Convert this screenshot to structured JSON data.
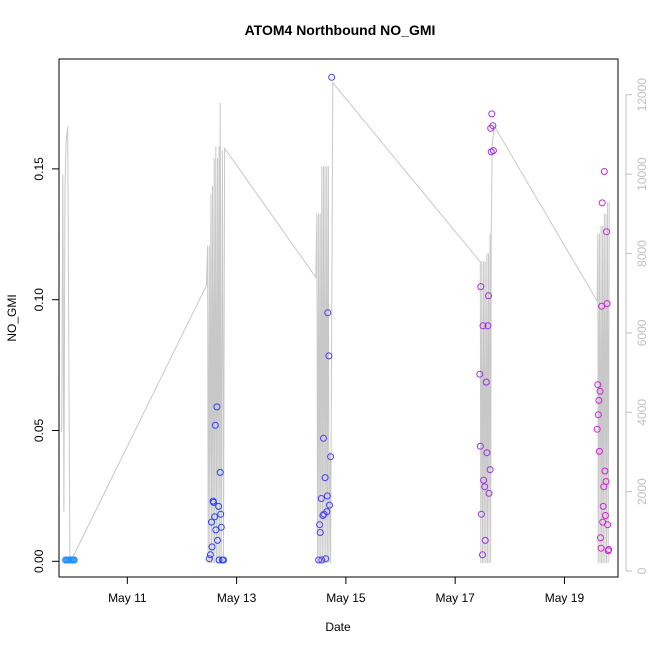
{
  "chart_data": {
    "type": "scatter",
    "title": "ATOM4 Northbound NO_GMI",
    "xlabel": "Date",
    "ylabel": "NO_GMI",
    "x_ticks": [
      "May 11",
      "May 13",
      "May 15",
      "May 17",
      "May 19"
    ],
    "x_tick_days": [
      11,
      13,
      15,
      17,
      19
    ],
    "xlim": [
      9.75,
      19.98
    ],
    "ylim": [
      -0.006,
      0.192
    ],
    "y_ticks": [
      0.0,
      0.05,
      0.1,
      0.15
    ],
    "y_tick_labels": [
      "0.00",
      "0.05",
      "0.10",
      "0.15"
    ],
    "y2lim": [
      -150,
      12900
    ],
    "y2_ticks": [
      0,
      2000,
      4000,
      6000,
      8000,
      10000,
      12000
    ],
    "y2_tick_labels": [
      "0",
      "2000",
      "4000",
      "6000",
      "8000",
      "10000",
      "12000"
    ],
    "grid": false,
    "colors": {
      "axis": "#000000",
      "altitude_line": "#c8c8c8",
      "right_axis": "#c0c0c0"
    },
    "points": [
      {
        "x": 9.87,
        "y": 0.0005,
        "color": "#1e90ff"
      },
      {
        "x": 9.89,
        "y": 0.0005,
        "color": "#1e90ff"
      },
      {
        "x": 9.91,
        "y": 0.0005,
        "color": "#1e90ff"
      },
      {
        "x": 9.93,
        "y": 0.0005,
        "color": "#1e90ff"
      },
      {
        "x": 9.95,
        "y": 0.0005,
        "color": "#1e90ff"
      },
      {
        "x": 9.97,
        "y": 0.0005,
        "color": "#1e90ff"
      },
      {
        "x": 9.99,
        "y": 0.0005,
        "color": "#1e90ff"
      },
      {
        "x": 10.01,
        "y": 0.0005,
        "color": "#1e90ff"
      },
      {
        "x": 10.03,
        "y": 0.0005,
        "color": "#1e90ff"
      },
      {
        "x": 12.5,
        "y": 0.001,
        "color": "#2a40ff"
      },
      {
        "x": 12.52,
        "y": 0.0025,
        "color": "#2a40ff"
      },
      {
        "x": 12.54,
        "y": 0.015,
        "color": "#2a40ff"
      },
      {
        "x": 12.55,
        "y": 0.0055,
        "color": "#2a40ff"
      },
      {
        "x": 12.57,
        "y": 0.023,
        "color": "#2a40ff"
      },
      {
        "x": 12.58,
        "y": 0.0225,
        "color": "#2a40ff"
      },
      {
        "x": 12.6,
        "y": 0.017,
        "color": "#2a40ff"
      },
      {
        "x": 12.61,
        "y": 0.052,
        "color": "#2a40ff"
      },
      {
        "x": 12.62,
        "y": 0.012,
        "color": "#2a40ff"
      },
      {
        "x": 12.64,
        "y": 0.059,
        "color": "#2a40ff"
      },
      {
        "x": 12.65,
        "y": 0.008,
        "color": "#2a40ff"
      },
      {
        "x": 12.67,
        "y": 0.021,
        "color": "#2a40ff"
      },
      {
        "x": 12.68,
        "y": 0.0005,
        "color": "#2a40ff"
      },
      {
        "x": 12.7,
        "y": 0.034,
        "color": "#2a40ff"
      },
      {
        "x": 12.71,
        "y": 0.018,
        "color": "#2a40ff"
      },
      {
        "x": 12.72,
        "y": 0.013,
        "color": "#2a40ff"
      },
      {
        "x": 12.74,
        "y": 0.0005,
        "color": "#2a40ff"
      },
      {
        "x": 12.76,
        "y": 0.0005,
        "color": "#2a40ff"
      },
      {
        "x": 14.5,
        "y": 0.0005,
        "color": "#4a3cff"
      },
      {
        "x": 14.52,
        "y": 0.014,
        "color": "#4a3cff"
      },
      {
        "x": 14.53,
        "y": 0.011,
        "color": "#4a3cff"
      },
      {
        "x": 14.55,
        "y": 0.024,
        "color": "#4a3cff"
      },
      {
        "x": 14.56,
        "y": 0.0005,
        "color": "#4a3cff"
      },
      {
        "x": 14.58,
        "y": 0.0175,
        "color": "#4a3cff"
      },
      {
        "x": 14.59,
        "y": 0.047,
        "color": "#4a3cff"
      },
      {
        "x": 14.6,
        "y": 0.018,
        "color": "#4a3cff"
      },
      {
        "x": 14.62,
        "y": 0.032,
        "color": "#4a3cff"
      },
      {
        "x": 14.63,
        "y": 0.001,
        "color": "#4a3cff"
      },
      {
        "x": 14.65,
        "y": 0.019,
        "color": "#4a3cff"
      },
      {
        "x": 14.66,
        "y": 0.025,
        "color": "#4a3cff"
      },
      {
        "x": 14.67,
        "y": 0.095,
        "color": "#4a3cff"
      },
      {
        "x": 14.69,
        "y": 0.0785,
        "color": "#4a3cff"
      },
      {
        "x": 14.7,
        "y": 0.0215,
        "color": "#4a3cff"
      },
      {
        "x": 14.72,
        "y": 0.04,
        "color": "#4a3cff"
      },
      {
        "x": 14.74,
        "y": 0.185,
        "color": "#4a3cff"
      },
      {
        "x": 17.45,
        "y": 0.0715,
        "color": "#9d2fe0"
      },
      {
        "x": 17.46,
        "y": 0.044,
        "color": "#9d2fe0"
      },
      {
        "x": 17.47,
        "y": 0.105,
        "color": "#9d2fe0"
      },
      {
        "x": 17.48,
        "y": 0.018,
        "color": "#9d2fe0"
      },
      {
        "x": 17.5,
        "y": 0.0025,
        "color": "#9d2fe0"
      },
      {
        "x": 17.51,
        "y": 0.09,
        "color": "#9d2fe0"
      },
      {
        "x": 17.52,
        "y": 0.031,
        "color": "#9d2fe0"
      },
      {
        "x": 17.54,
        "y": 0.0285,
        "color": "#9d2fe0"
      },
      {
        "x": 17.55,
        "y": 0.008,
        "color": "#9d2fe0"
      },
      {
        "x": 17.57,
        "y": 0.0685,
        "color": "#9d2fe0"
      },
      {
        "x": 17.58,
        "y": 0.0415,
        "color": "#9d2fe0"
      },
      {
        "x": 17.6,
        "y": 0.09,
        "color": "#9d2fe0"
      },
      {
        "x": 17.61,
        "y": 0.1015,
        "color": "#9d2fe0"
      },
      {
        "x": 17.62,
        "y": 0.026,
        "color": "#9d2fe0"
      },
      {
        "x": 17.64,
        "y": 0.035,
        "color": "#9d2fe0"
      },
      {
        "x": 17.65,
        "y": 0.1655,
        "color": "#9d2fe0"
      },
      {
        "x": 17.66,
        "y": 0.1565,
        "color": "#9d2fe0"
      },
      {
        "x": 17.67,
        "y": 0.171,
        "color": "#9d2fe0"
      },
      {
        "x": 17.69,
        "y": 0.1665,
        "color": "#9d2fe0"
      },
      {
        "x": 17.7,
        "y": 0.157,
        "color": "#9d2fe0"
      },
      {
        "x": 19.6,
        "y": 0.0505,
        "color": "#d21fd8"
      },
      {
        "x": 19.61,
        "y": 0.0675,
        "color": "#d21fd8"
      },
      {
        "x": 19.62,
        "y": 0.056,
        "color": "#d21fd8"
      },
      {
        "x": 19.63,
        "y": 0.0615,
        "color": "#d21fd8"
      },
      {
        "x": 19.64,
        "y": 0.042,
        "color": "#d21fd8"
      },
      {
        "x": 19.65,
        "y": 0.065,
        "color": "#d21fd8"
      },
      {
        "x": 19.66,
        "y": 0.009,
        "color": "#d21fd8"
      },
      {
        "x": 19.67,
        "y": 0.005,
        "color": "#d21fd8"
      },
      {
        "x": 19.68,
        "y": 0.0975,
        "color": "#d21fd8"
      },
      {
        "x": 19.69,
        "y": 0.137,
        "color": "#d21fd8"
      },
      {
        "x": 19.7,
        "y": 0.015,
        "color": "#d21fd8"
      },
      {
        "x": 19.71,
        "y": 0.021,
        "color": "#d21fd8"
      },
      {
        "x": 19.72,
        "y": 0.0285,
        "color": "#d21fd8"
      },
      {
        "x": 19.73,
        "y": 0.149,
        "color": "#d21fd8"
      },
      {
        "x": 19.74,
        "y": 0.0345,
        "color": "#d21fd8"
      },
      {
        "x": 19.75,
        "y": 0.0175,
        "color": "#d21fd8"
      },
      {
        "x": 19.76,
        "y": 0.0305,
        "color": "#d21fd8"
      },
      {
        "x": 19.77,
        "y": 0.126,
        "color": "#d21fd8"
      },
      {
        "x": 19.78,
        "y": 0.0985,
        "color": "#d21fd8"
      },
      {
        "x": 19.79,
        "y": 0.014,
        "color": "#d21fd8"
      },
      {
        "x": 19.8,
        "y": 0.004,
        "color": "#d21fd8"
      },
      {
        "x": 19.81,
        "y": 0.0045,
        "color": "#d21fd8"
      }
    ],
    "altitude": [
      [
        9.8,
        3500
      ],
      [
        9.82,
        10000
      ],
      [
        9.84,
        1500
      ],
      [
        9.86,
        9700
      ],
      [
        9.88,
        10800
      ],
      [
        9.91,
        11200
      ],
      [
        9.95,
        200
      ],
      [
        12.45,
        7200
      ],
      [
        12.47,
        8200
      ],
      [
        12.48,
        200
      ],
      [
        12.5,
        8200
      ],
      [
        12.51,
        200
      ],
      [
        12.53,
        9500
      ],
      [
        12.54,
        200
      ],
      [
        12.56,
        9700
      ],
      [
        12.57,
        200
      ],
      [
        12.59,
        10400
      ],
      [
        12.6,
        200
      ],
      [
        12.62,
        10700
      ],
      [
        12.63,
        200
      ],
      [
        12.65,
        10400
      ],
      [
        12.66,
        200
      ],
      [
        12.68,
        10700
      ],
      [
        12.69,
        200
      ],
      [
        12.7,
        11800
      ],
      [
        12.72,
        200
      ],
      [
        12.74,
        10600
      ],
      [
        12.76,
        200
      ],
      [
        12.78,
        10650
      ],
      [
        14.45,
        7400
      ],
      [
        14.47,
        9000
      ],
      [
        14.48,
        200
      ],
      [
        14.5,
        9000
      ],
      [
        14.51,
        200
      ],
      [
        14.53,
        9000
      ],
      [
        14.54,
        200
      ],
      [
        14.56,
        10200
      ],
      [
        14.57,
        200
      ],
      [
        14.59,
        10200
      ],
      [
        14.6,
        200
      ],
      [
        14.62,
        10200
      ],
      [
        14.63,
        200
      ],
      [
        14.65,
        10200
      ],
      [
        14.66,
        200
      ],
      [
        14.68,
        10200
      ],
      [
        14.69,
        200
      ],
      [
        14.71,
        3000
      ],
      [
        14.72,
        200
      ],
      [
        14.76,
        12300
      ],
      [
        17.45,
        7800
      ],
      [
        17.46,
        7800
      ],
      [
        17.47,
        200
      ],
      [
        17.49,
        7800
      ],
      [
        17.5,
        200
      ],
      [
        17.52,
        7800
      ],
      [
        17.53,
        200
      ],
      [
        17.55,
        7800
      ],
      [
        17.56,
        200
      ],
      [
        17.58,
        8000
      ],
      [
        17.59,
        200
      ],
      [
        17.61,
        8000
      ],
      [
        17.62,
        200
      ],
      [
        17.64,
        8500
      ],
      [
        17.65,
        200
      ],
      [
        17.66,
        8500
      ],
      [
        17.68,
        10800
      ],
      [
        17.72,
        11200
      ],
      [
        19.6,
        6800
      ],
      [
        19.61,
        8500
      ],
      [
        19.62,
        200
      ],
      [
        19.64,
        8500
      ],
      [
        19.65,
        200
      ],
      [
        19.67,
        8700
      ],
      [
        19.68,
        200
      ],
      [
        19.7,
        8700
      ],
      [
        19.71,
        200
      ],
      [
        19.73,
        9000
      ],
      [
        19.74,
        200
      ],
      [
        19.76,
        9000
      ],
      [
        19.77,
        200
      ],
      [
        19.79,
        9300
      ],
      [
        19.8,
        200
      ],
      [
        19.82,
        9300
      ]
    ]
  }
}
